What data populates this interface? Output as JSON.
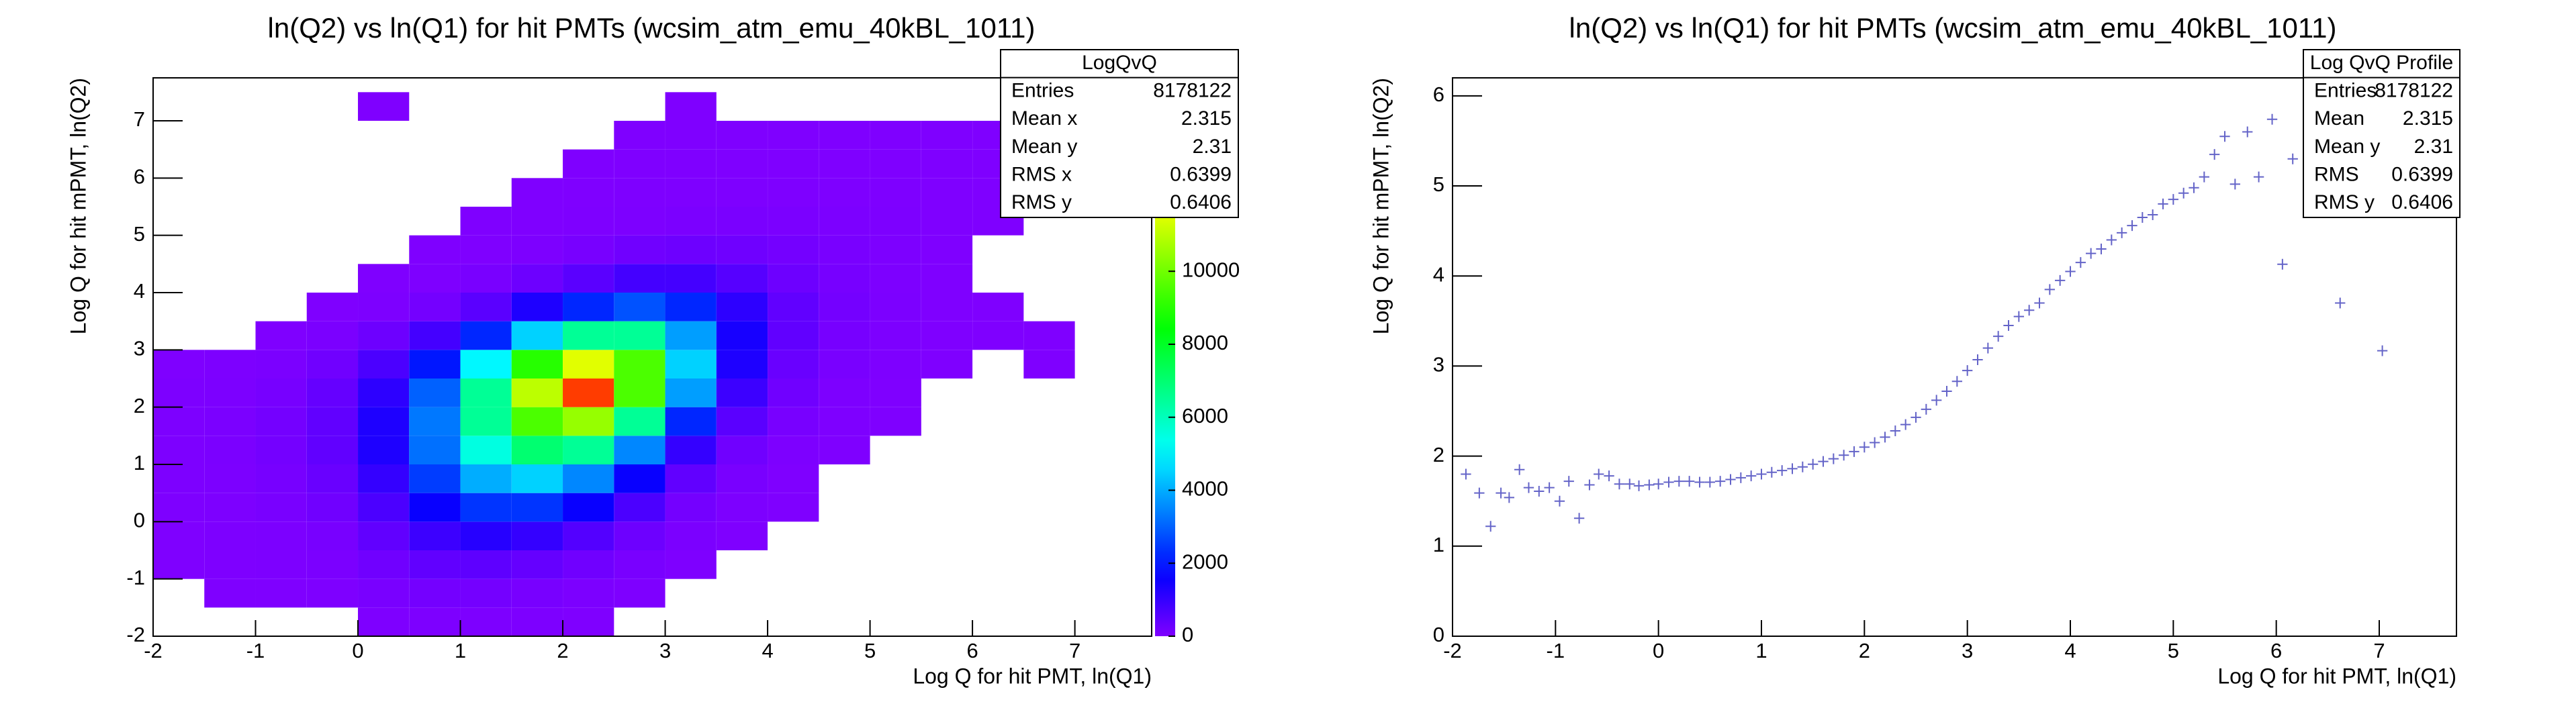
{
  "chart_data": [
    {
      "type": "heatmap",
      "title": "ln(Q2) vs ln(Q1) for hit PMTs (wcsim_atm_emu_40kBL_1011)",
      "x_label": "Log Q for hit PMT, ln(Q1)",
      "y_label": "Log Q for hit mPMT, ln(Q2)",
      "xlim": [
        -2,
        7.75
      ],
      "ylim": [
        -2,
        7.75
      ],
      "xticks": [
        -2,
        -1,
        0,
        1,
        2,
        3,
        4,
        5,
        6,
        7
      ],
      "yticks": [
        -2,
        -1,
        0,
        1,
        2,
        3,
        4,
        5,
        6,
        7
      ],
      "zlim": [
        0,
        15300
      ],
      "zticks": [
        0,
        2000,
        4000,
        6000,
        8000,
        10000,
        12000,
        14000
      ],
      "colormap": "rainbow",
      "xbins": [
        -2,
        -1.5,
        -1,
        -0.5,
        0,
        0.5,
        1,
        1.5,
        2,
        2.5,
        3,
        3.5,
        4,
        4.5,
        5,
        5.5,
        6,
        6.5,
        7,
        7.5
      ],
      "ybins": [
        -2,
        -1.5,
        -1,
        -0.5,
        0,
        0.5,
        1,
        1.5,
        2,
        2.5,
        3,
        3.5,
        4,
        4.5,
        5,
        5.5,
        6,
        6.5,
        7,
        7.5
      ],
      "z": [
        [
          0,
          0,
          0,
          0,
          20,
          40,
          40,
          30,
          10,
          0,
          0,
          0,
          0,
          0,
          0,
          0,
          0,
          0,
          0
        ],
        [
          0,
          10,
          10,
          20,
          80,
          150,
          150,
          100,
          50,
          20,
          0,
          0,
          0,
          0,
          0,
          0,
          0,
          0,
          0
        ],
        [
          10,
          20,
          30,
          60,
          200,
          400,
          450,
          350,
          200,
          80,
          20,
          0,
          0,
          0,
          0,
          0,
          0,
          0,
          0
        ],
        [
          10,
          30,
          50,
          100,
          400,
          900,
          1200,
          1000,
          600,
          250,
          60,
          10,
          0,
          0,
          0,
          0,
          0,
          0,
          0
        ],
        [
          20,
          40,
          80,
          200,
          700,
          1600,
          2400,
          2400,
          1600,
          700,
          150,
          30,
          5,
          0,
          0,
          0,
          0,
          0,
          0
        ],
        [
          30,
          50,
          120,
          300,
          1000,
          2500,
          4000,
          4500,
          3500,
          1600,
          400,
          80,
          10,
          0,
          0,
          0,
          0,
          0,
          0
        ],
        [
          40,
          60,
          150,
          400,
          1300,
          3200,
          5500,
          7000,
          6500,
          3500,
          1000,
          200,
          40,
          5,
          0,
          0,
          0,
          0,
          0
        ],
        [
          40,
          60,
          150,
          400,
          1300,
          3300,
          6500,
          9500,
          10500,
          6500,
          2200,
          500,
          100,
          20,
          5,
          0,
          0,
          0,
          0
        ],
        [
          30,
          50,
          120,
          350,
          1100,
          3000,
          6500,
          11000,
          14500,
          9500,
          3800,
          900,
          200,
          40,
          10,
          0,
          0,
          0,
          0
        ],
        [
          10,
          30,
          60,
          200,
          700,
          2000,
          5000,
          9000,
          11500,
          9500,
          4500,
          1300,
          300,
          80,
          20,
          5,
          0,
          5,
          0
        ],
        [
          0,
          0,
          10,
          60,
          250,
          800,
          2200,
          4500,
          6500,
          6500,
          3800,
          1400,
          400,
          120,
          30,
          10,
          5,
          5,
          0
        ],
        [
          0,
          0,
          0,
          5,
          40,
          150,
          500,
          1300,
          2200,
          2800,
          2200,
          1100,
          400,
          150,
          50,
          10,
          5,
          0,
          0
        ],
        [
          0,
          0,
          0,
          0,
          5,
          20,
          80,
          250,
          500,
          800,
          800,
          550,
          250,
          120,
          40,
          10,
          0,
          0,
          0
        ],
        [
          0,
          0,
          0,
          0,
          0,
          5,
          10,
          40,
          100,
          200,
          250,
          220,
          150,
          90,
          40,
          10,
          0,
          0,
          0
        ],
        [
          0,
          0,
          0,
          0,
          0,
          0,
          5,
          10,
          20,
          40,
          60,
          70,
          60,
          50,
          30,
          10,
          5,
          0,
          0
        ],
        [
          0,
          0,
          0,
          0,
          0,
          0,
          0,
          5,
          10,
          15,
          20,
          25,
          25,
          20,
          15,
          10,
          5,
          0,
          0
        ],
        [
          0,
          0,
          0,
          0,
          0,
          0,
          0,
          0,
          5,
          10,
          10,
          10,
          10,
          10,
          10,
          10,
          5,
          0,
          0
        ],
        [
          0,
          0,
          0,
          0,
          0,
          0,
          0,
          0,
          0,
          5,
          5,
          5,
          5,
          5,
          5,
          5,
          5,
          0,
          0
        ],
        [
          0,
          0,
          0,
          0,
          5,
          0,
          0,
          0,
          0,
          0,
          5,
          0,
          0,
          0,
          0,
          0,
          0,
          0,
          0
        ]
      ],
      "stats": {
        "title": "LogQvQ",
        "rows": [
          {
            "label": "Entries",
            "value": 8178122
          },
          {
            "label": "Mean x",
            "value": 2.315
          },
          {
            "label": "Mean y",
            "value": 2.31
          },
          {
            "label": "RMS x",
            "value": 0.6399
          },
          {
            "label": "RMS y",
            "value": 0.6406
          }
        ]
      }
    },
    {
      "type": "profile",
      "title": "ln(Q2) vs ln(Q1) for hit PMTs (wcsim_atm_emu_40kBL_1011)",
      "x_label": "Log Q for hit PMT, ln(Q1)",
      "y_label": "Log Q for hit mPMT, ln(Q2)",
      "xlim": [
        -2,
        7.75
      ],
      "ylim": [
        0,
        6.2
      ],
      "xticks": [
        -2,
        -1,
        0,
        1,
        2,
        3,
        4,
        5,
        6,
        7
      ],
      "yticks": [
        0,
        1,
        2,
        3,
        4,
        5,
        6
      ],
      "color": "#6464c8",
      "bin_width": 0.1,
      "x": [
        -1.87,
        -1.74,
        -1.63,
        -1.53,
        -1.45,
        -1.35,
        -1.26,
        -1.16,
        -1.06,
        -0.96,
        -0.87,
        -0.77,
        -0.67,
        -0.58,
        -0.48,
        -0.38,
        -0.28,
        -0.19,
        -0.09,
        0,
        0.1,
        0.2,
        0.3,
        0.4,
        0.5,
        0.6,
        0.7,
        0.8,
        0.9,
        1,
        1.1,
        1.2,
        1.3,
        1.4,
        1.5,
        1.6,
        1.7,
        1.8,
        1.9,
        2,
        2.1,
        2.2,
        2.3,
        2.4,
        2.5,
        2.6,
        2.7,
        2.8,
        2.9,
        3,
        3.1,
        3.2,
        3.3,
        3.4,
        3.5,
        3.6,
        3.7,
        3.8,
        3.9,
        4,
        4.1,
        4.2,
        4.3,
        4.4,
        4.5,
        4.6,
        4.7,
        4.8,
        4.9,
        5,
        5.1,
        5.2,
        5.3,
        5.4,
        5.5,
        5.6,
        5.72,
        5.83,
        5.96,
        6.06,
        6.16,
        6.62,
        7.03
      ],
      "y": [
        1.8,
        1.59,
        1.22,
        1.59,
        1.54,
        1.85,
        1.65,
        1.61,
        1.65,
        1.5,
        1.72,
        1.31,
        1.68,
        1.8,
        1.78,
        1.69,
        1.69,
        1.67,
        1.68,
        1.69,
        1.71,
        1.72,
        1.72,
        1.71,
        1.71,
        1.72,
        1.74,
        1.76,
        1.78,
        1.8,
        1.82,
        1.84,
        1.86,
        1.88,
        1.91,
        1.94,
        1.97,
        2.01,
        2.05,
        2.1,
        2.15,
        2.21,
        2.28,
        2.35,
        2.43,
        2.52,
        2.62,
        2.72,
        2.83,
        2.95,
        3.07,
        3.2,
        3.33,
        3.45,
        3.55,
        3.62,
        3.7,
        3.85,
        3.95,
        4.05,
        4.15,
        4.25,
        4.3,
        4.4,
        4.48,
        4.56,
        4.65,
        4.68,
        4.8,
        4.85,
        4.92,
        4.98,
        5.1,
        5.35,
        5.55,
        5.02,
        5.6,
        5.1,
        5.74,
        4.13,
        5.3,
        3.7,
        3.17
      ],
      "stats": {
        "title": "Log QvQ Profile",
        "rows": [
          {
            "label": "Entries",
            "value": 8178122
          },
          {
            "label": "Mean",
            "value": 2.315
          },
          {
            "label": "Mean y",
            "value": 2.31
          },
          {
            "label": "RMS",
            "value": 0.6399
          },
          {
            "label": "RMS y",
            "value": 0.6406
          }
        ]
      }
    }
  ]
}
